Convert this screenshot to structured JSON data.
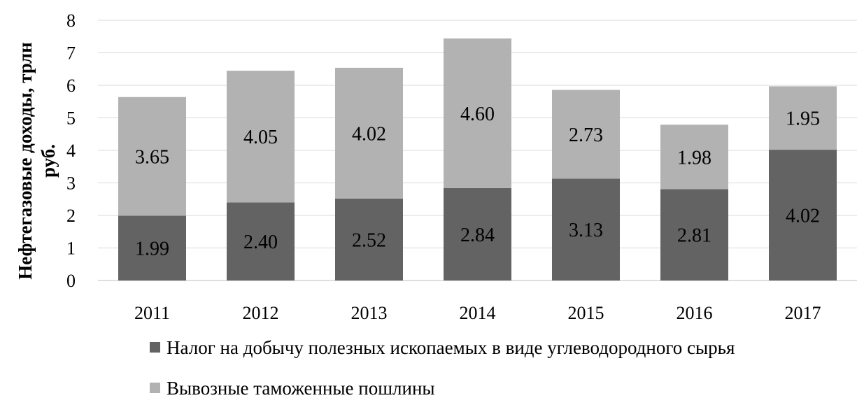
{
  "chart_data": {
    "type": "bar",
    "stacked": true,
    "categories": [
      "2011",
      "2012",
      "2013",
      "2014",
      "2015",
      "2016",
      "2017"
    ],
    "series": [
      {
        "name": "Налог на добычу полезных ископаемых в виде углеводородного сырья",
        "values": [
          1.99,
          2.4,
          2.52,
          2.84,
          3.13,
          2.81,
          4.02
        ],
        "labels": [
          "1.99",
          "2.40",
          "2.52",
          "2.84",
          "3.13",
          "2.81",
          "4.02"
        ],
        "color": "#636363"
      },
      {
        "name": "Вывозные таможенные пошлины",
        "values": [
          3.65,
          4.05,
          4.02,
          4.6,
          2.73,
          1.98,
          1.95
        ],
        "labels": [
          "3.65",
          "4.05",
          "4.02",
          "4.60",
          "2.73",
          "1.98",
          "1.95"
        ],
        "color": "#b2b2b2"
      }
    ],
    "ylabel_lines": [
      "Нефтегазовые доходы, трлн",
      "руб."
    ],
    "ylim": [
      0,
      8
    ],
    "yticks": [
      "0",
      "1",
      "2",
      "3",
      "4",
      "5",
      "6",
      "7",
      "8"
    ],
    "grid": true,
    "gridColor": "#d9d9d9",
    "legend_position": "bottom"
  }
}
